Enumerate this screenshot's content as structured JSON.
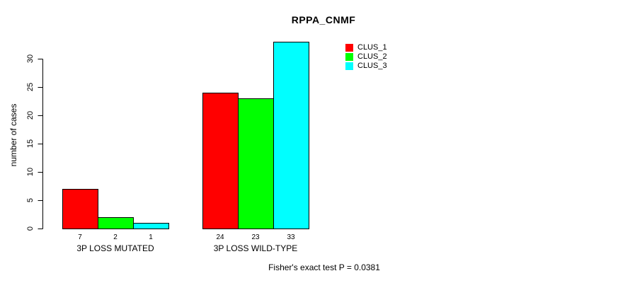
{
  "chart_data": {
    "type": "bar",
    "title": "RPPA_CNMF",
    "ylabel": "number of cases",
    "xlabel": "",
    "categories": [
      "3P LOSS MUTATED",
      "3P LOSS WILD-TYPE"
    ],
    "series": [
      {
        "name": "CLUS_1",
        "color": "#ff0000",
        "values": [
          7,
          24
        ]
      },
      {
        "name": "CLUS_2",
        "color": "#00ff00",
        "values": [
          2,
          23
        ]
      },
      {
        "name": "CLUS_3",
        "color": "#00ffff",
        "values": [
          1,
          33
        ]
      }
    ],
    "yticks": [
      0,
      5,
      10,
      15,
      20,
      25,
      30
    ],
    "ylim": [
      0,
      33
    ],
    "bar_value_labels": [
      [
        "7",
        "2",
        "1"
      ],
      [
        "24",
        "23",
        "33"
      ]
    ],
    "legend_position": "top-right",
    "grid": false,
    "annotation": "Fisher's exact test P = 0.0381",
    "colors": {
      "background": "#ffffff",
      "axis": "#000000",
      "text": "#000000",
      "bar_border": "#000000"
    }
  }
}
